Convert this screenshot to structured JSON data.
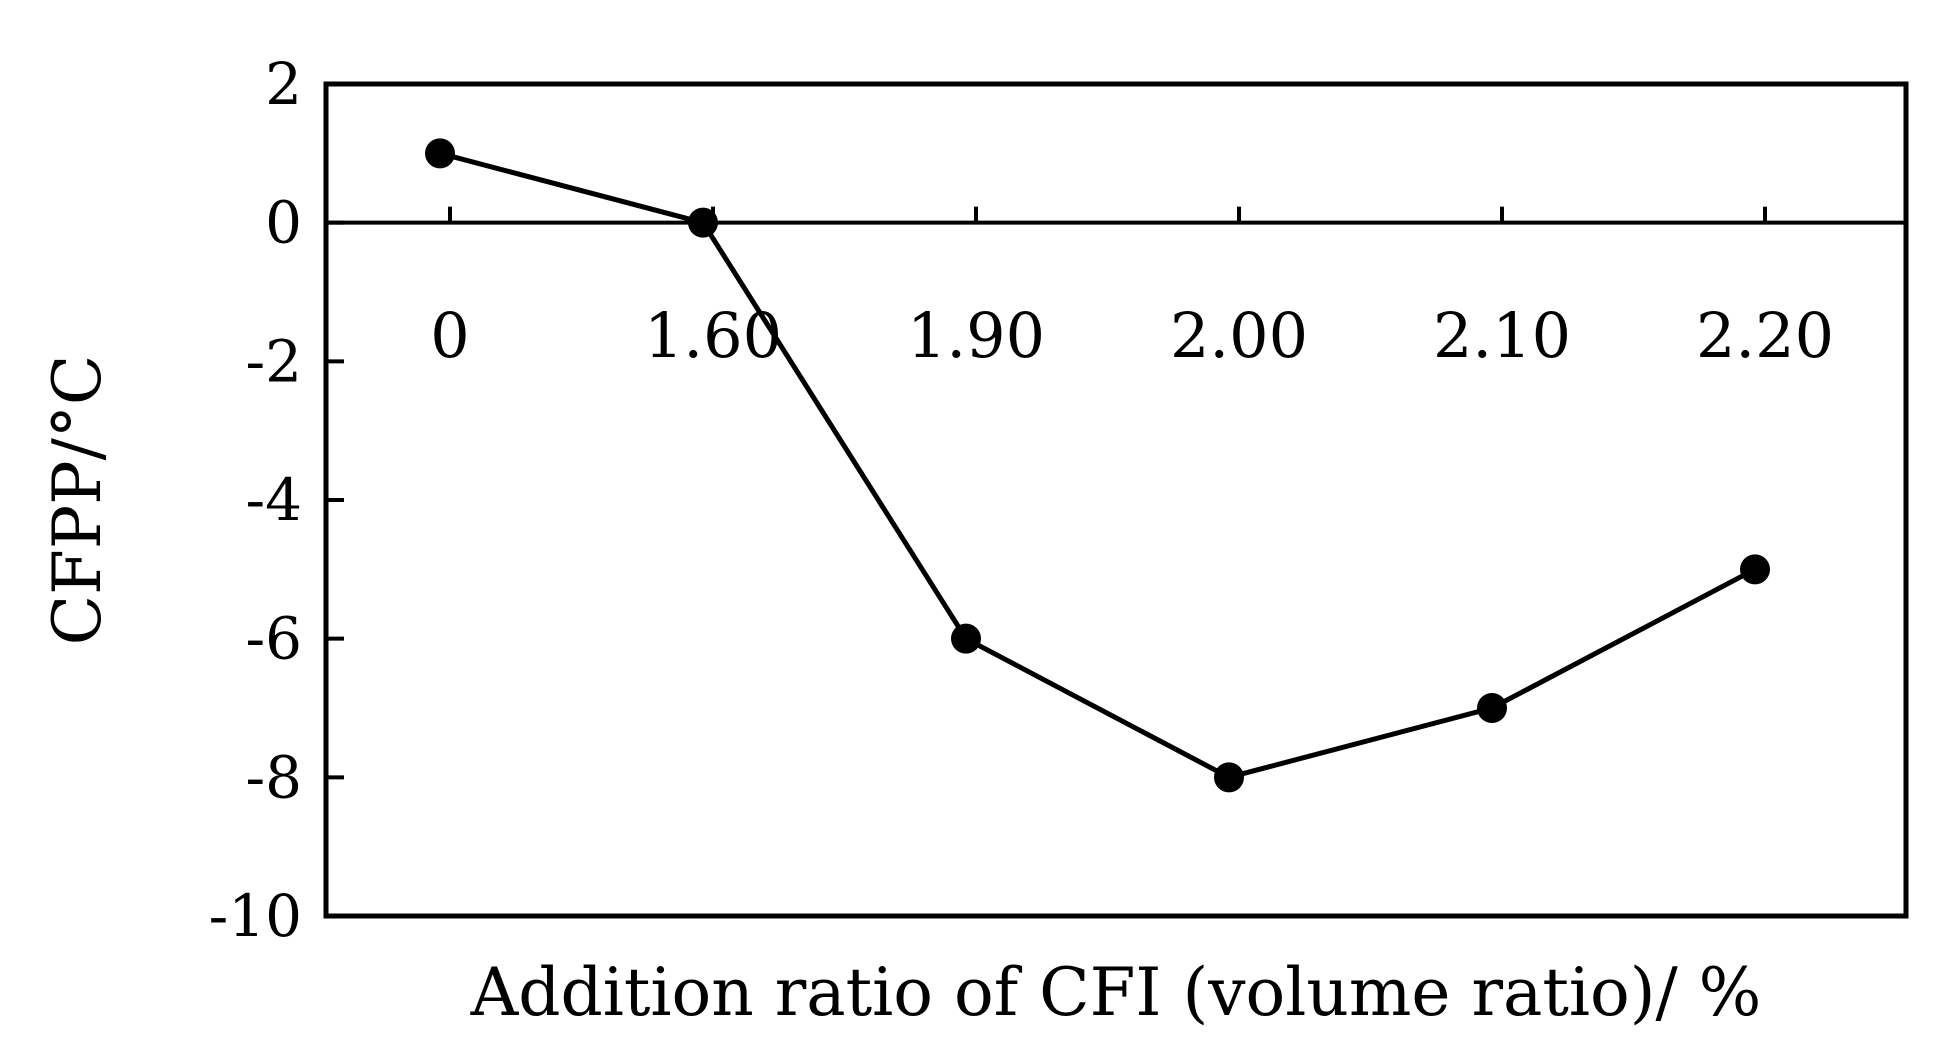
{
  "chart_data": {
    "type": "line",
    "categories": [
      "0",
      "1.60",
      "1.90",
      "2.00",
      "2.10",
      "2.20"
    ],
    "series": [
      {
        "values": [
          1,
          0,
          -6,
          -8,
          -7,
          -5
        ],
        "color": "#000000",
        "marker": "circle"
      }
    ],
    "xlabel": "Addition ratio of CFI (volume ratio)/ %",
    "ylabel": "CFPP/°C",
    "ylim": [
      -10,
      2
    ],
    "yticks": [
      "2",
      "0",
      "-2",
      "-4",
      "-6",
      "-8",
      "-10"
    ],
    "ytick_values": [
      2,
      0,
      -2,
      -4,
      -6,
      -8,
      -10
    ],
    "grid": false,
    "legend": "none"
  }
}
